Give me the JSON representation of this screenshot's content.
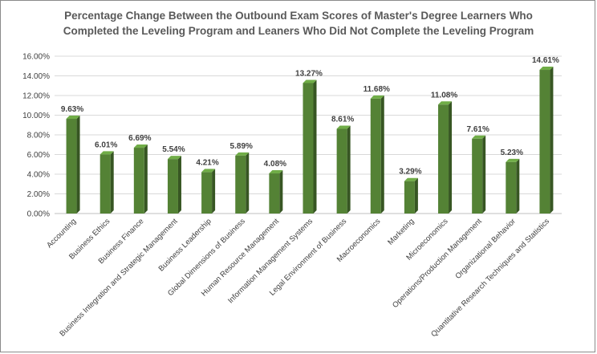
{
  "chart_data": {
    "type": "bar",
    "title_line1": "Percentage Change Between the Outbound Exam Scores of Master's Degree Learners Who",
    "title_line2": "Completed the Leveling Program and Leaners Who Did Not Complete the Leveling Program",
    "xlabel": "",
    "ylabel": "",
    "ylim": [
      0,
      16
    ],
    "grid": true,
    "legend": "none",
    "bar_colors": {
      "front": "#548235",
      "side": "#375623",
      "top": "#70ad47"
    },
    "yticks": [
      "0.00%",
      "2.00%",
      "4.00%",
      "6.00%",
      "8.00%",
      "10.00%",
      "12.00%",
      "14.00%",
      "16.00%"
    ],
    "categories": [
      "Accounting",
      "Business Ethics",
      "Business Finance",
      "Business Integration and Strategic Management",
      "Business Leadership",
      "Global Dimensions of Business",
      "Human Resource Management",
      "Information Management Systems",
      "Legal Environment of Business",
      "Macroeconomics",
      "Marketing",
      "Microeconomics",
      "Operations/Production Management",
      "Organizational Behavior",
      "Quantitative Research Techniques and Statistics"
    ],
    "values": [
      9.63,
      6.01,
      6.69,
      5.54,
      4.21,
      5.89,
      4.08,
      13.27,
      8.61,
      11.68,
      3.29,
      11.08,
      7.61,
      5.23,
      14.61
    ],
    "data_labels": [
      "9.63%",
      "6.01%",
      "6.69%",
      "5.54%",
      "4.21%",
      "5.89%",
      "4.08%",
      "13.27%",
      "8.61%",
      "11.68%",
      "3.29%",
      "11.08%",
      "7.61%",
      "5.23%",
      "14.61%"
    ]
  }
}
